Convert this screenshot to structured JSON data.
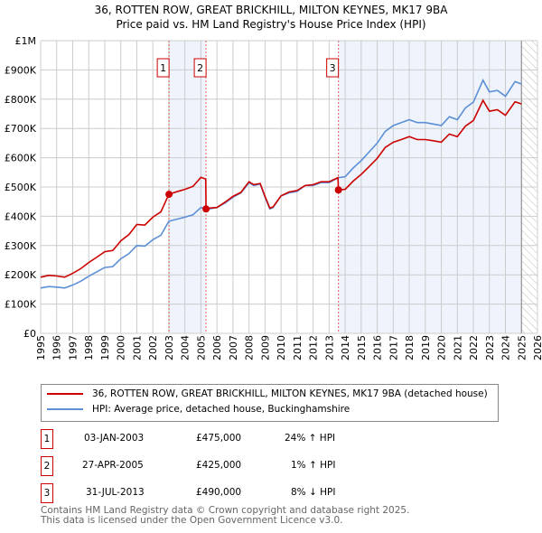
{
  "chart_data": {
    "type": "line",
    "title": "36, ROTTEN ROW, GREAT BRICKHILL, MILTON KEYNES, MK17 9BA",
    "subtitle": "Price paid vs. HM Land Registry's House Price Index (HPI)",
    "xlim": [
      1995,
      2026
    ],
    "ylim": [
      0,
      1000000
    ],
    "x_ticks": [
      "1995",
      "1996",
      "1997",
      "1998",
      "1999",
      "2000",
      "2001",
      "2002",
      "2003",
      "2004",
      "2005",
      "2006",
      "2007",
      "2008",
      "2009",
      "2010",
      "2011",
      "2012",
      "2013",
      "2014",
      "2015",
      "2016",
      "2017",
      "2018",
      "2019",
      "2020",
      "2021",
      "2022",
      "2023",
      "2024",
      "2025",
      "2026"
    ],
    "y_ticks": [
      {
        "v": 0,
        "l": "£0"
      },
      {
        "v": 100000,
        "l": "£100K"
      },
      {
        "v": 200000,
        "l": "£200K"
      },
      {
        "v": 300000,
        "l": "£300K"
      },
      {
        "v": 400000,
        "l": "£400K"
      },
      {
        "v": 500000,
        "l": "£500K"
      },
      {
        "v": 600000,
        "l": "£600K"
      },
      {
        "v": 700000,
        "l": "£700K"
      },
      {
        "v": 800000,
        "l": "£800K"
      },
      {
        "v": 900000,
        "l": "£900K"
      },
      {
        "v": 1000000,
        "l": "£1M"
      }
    ],
    "grid": true,
    "series": [
      {
        "name": "36, ROTTEN ROW, GREAT BRICKHILL, MILTON KEYNES, MK17 9BA (detached house)",
        "color": "#cc0000",
        "x": [
          1995,
          1995.5,
          1996,
          1996.5,
          1997,
          1997.5,
          1998,
          1998.5,
          1999,
          1999.5,
          2000,
          2000.5,
          2001,
          2001.5,
          2002,
          2002.5,
          2003,
          2003.5,
          2004,
          2004.5,
          2005,
          2005.3,
          2005.32,
          2005.5,
          2006,
          2006.5,
          2007,
          2007.5,
          2008,
          2008.3,
          2008.7,
          2009,
          2009.3,
          2009.5,
          2010,
          2010.5,
          2011,
          2011.5,
          2012,
          2012.5,
          2013,
          2013.55,
          2013.58,
          2014,
          2014.5,
          2015,
          2015.5,
          2016,
          2016.5,
          2017,
          2017.5,
          2018,
          2018.5,
          2019,
          2019.5,
          2020,
          2020.5,
          2021,
          2021.5,
          2022,
          2022.6,
          2023,
          2023.5,
          2024,
          2024.6,
          2025
        ],
        "values": [
          192,
          198,
          196,
          192,
          205,
          221,
          242,
          260,
          279,
          283,
          316,
          337,
          372,
          370,
          397,
          415,
          475,
          484,
          492,
          502,
          533,
          527,
          425,
          428,
          430,
          448,
          468,
          482,
          518,
          508,
          512,
          468,
          428,
          432,
          470,
          483,
          488,
          505,
          508,
          518,
          518,
          532,
          490,
          492,
          520,
          543,
          570,
          598,
          635,
          653,
          662,
          672,
          662,
          662,
          658,
          653,
          681,
          672,
          708,
          727,
          796,
          759,
          764,
          745,
          791,
          784
        ]
      },
      {
        "name": "HPI: Average price, detached house, Buckinghamshire",
        "color": "#5b8fd6",
        "x": [
          1995,
          1995.5,
          1996,
          1996.5,
          1997,
          1997.5,
          1998,
          1998.5,
          1999,
          1999.5,
          2000,
          2000.5,
          2001,
          2001.5,
          2002,
          2002.5,
          2003,
          2003.5,
          2004,
          2004.5,
          2005,
          2005.5,
          2006,
          2006.5,
          2007,
          2007.5,
          2008,
          2008.3,
          2008.7,
          2009,
          2009.3,
          2009.5,
          2010,
          2010.5,
          2011,
          2011.5,
          2012,
          2012.5,
          2013,
          2013.58,
          2014,
          2014.5,
          2015,
          2015.5,
          2016,
          2016.5,
          2017,
          2017.5,
          2018,
          2018.5,
          2019,
          2019.5,
          2020,
          2020.5,
          2021,
          2021.5,
          2022,
          2022.6,
          2023,
          2023.5,
          2024,
          2024.6,
          2025
        ],
        "values": [
          155,
          160,
          158,
          155,
          165,
          178,
          195,
          210,
          225,
          228,
          255,
          272,
          300,
          298,
          320,
          335,
          383,
          390,
          397,
          405,
          430,
          425,
          430,
          445,
          465,
          480,
          515,
          505,
          510,
          465,
          425,
          430,
          470,
          480,
          485,
          505,
          505,
          515,
          515,
          532,
          535,
          565,
          590,
          620,
          650,
          690,
          710,
          720,
          730,
          720,
          720,
          715,
          710,
          740,
          730,
          770,
          790,
          865,
          825,
          830,
          810,
          860,
          852
        ]
      }
    ],
    "value_unit": "£K",
    "sales": [
      {
        "n": "1",
        "x": 2003.01,
        "v": 475
      },
      {
        "n": "2",
        "x": 2005.32,
        "v": 425
      },
      {
        "n": "3",
        "x": 2013.58,
        "v": 490
      }
    ],
    "shaded": [
      [
        2003.01,
        2005.32
      ],
      [
        2013.58,
        2025.0
      ]
    ],
    "hatched_from": 2025.0
  },
  "legend": {
    "property": "36, ROTTEN ROW, GREAT BRICKHILL, MILTON KEYNES, MK17 9BA (detached house)",
    "hpi": "HPI: Average price, detached house, Buckinghamshire"
  },
  "transactions": [
    {
      "num": "1",
      "date": "03-JAN-2003",
      "price": "£475,000",
      "hpi": "24% ↑ HPI"
    },
    {
      "num": "2",
      "date": "27-APR-2005",
      "price": "£425,000",
      "hpi": "1% ↑ HPI"
    },
    {
      "num": "3",
      "date": "31-JUL-2013",
      "price": "£490,000",
      "hpi": "8% ↓ HPI"
    }
  ],
  "footer": {
    "line1": "Contains HM Land Registry data © Crown copyright and database right 2025.",
    "line2": "This data is licensed under the Open Government Licence v3.0."
  }
}
